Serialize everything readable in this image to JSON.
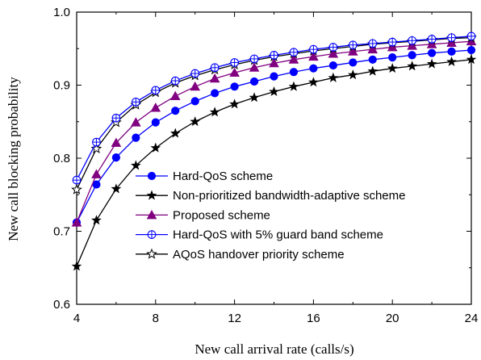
{
  "chart_data": {
    "type": "line",
    "title": "",
    "xlabel": "New call arrival rate (calls/s)",
    "ylabel": "New call blocking probability",
    "xlim": [
      4,
      24
    ],
    "ylim": [
      0.6,
      1.0
    ],
    "xticks": [
      4,
      8,
      12,
      16,
      20,
      24
    ],
    "yticks": [
      0.6,
      0.7,
      0.8,
      0.9,
      1.0
    ],
    "ytick_labels": [
      "0.6",
      "0.7",
      "0.8",
      "0.9",
      "1.0"
    ],
    "grid": false,
    "legend_position": "bottom-left",
    "x": [
      4,
      5,
      6,
      7,
      8,
      9,
      10,
      11,
      12,
      13,
      14,
      15,
      16,
      17,
      18,
      19,
      20,
      21,
      22,
      23,
      24
    ],
    "series": [
      {
        "name": "Hard-QoS scheme",
        "color": "#0000ff",
        "marker": "filled-circle",
        "values": [
          0.712,
          0.764,
          0.801,
          0.828,
          0.849,
          0.865,
          0.878,
          0.889,
          0.898,
          0.905,
          0.912,
          0.918,
          0.923,
          0.927,
          0.931,
          0.935,
          0.938,
          0.941,
          0.944,
          0.946,
          0.948
        ]
      },
      {
        "name": "Non-prioritized bandwidth-adaptive scheme",
        "color": "#000000",
        "marker": "filled-star",
        "values": [
          0.652,
          0.715,
          0.758,
          0.79,
          0.814,
          0.834,
          0.85,
          0.863,
          0.874,
          0.883,
          0.891,
          0.898,
          0.904,
          0.91,
          0.914,
          0.919,
          0.923,
          0.926,
          0.929,
          0.932,
          0.935
        ]
      },
      {
        "name": "Proposed scheme",
        "color": "#800080",
        "marker": "filled-triangle",
        "values": [
          0.712,
          0.778,
          0.821,
          0.849,
          0.869,
          0.885,
          0.898,
          0.909,
          0.917,
          0.924,
          0.93,
          0.935,
          0.939,
          0.943,
          0.946,
          0.949,
          0.952,
          0.954,
          0.956,
          0.958,
          0.96
        ]
      },
      {
        "name": "Hard-QoS with 5% guard band scheme",
        "color": "#0000ff",
        "marker": "circle-plus",
        "values": [
          0.77,
          0.822,
          0.855,
          0.877,
          0.893,
          0.906,
          0.916,
          0.924,
          0.931,
          0.936,
          0.941,
          0.945,
          0.949,
          0.952,
          0.955,
          0.957,
          0.959,
          0.961,
          0.963,
          0.965,
          0.967
        ]
      },
      {
        "name": "AQoS handover priority scheme",
        "color": "#000000",
        "marker": "open-star",
        "values": [
          0.757,
          0.813,
          0.849,
          0.873,
          0.89,
          0.903,
          0.913,
          0.921,
          0.928,
          0.934,
          0.939,
          0.943,
          0.947,
          0.95,
          0.953,
          0.956,
          0.958,
          0.96,
          0.962,
          0.964,
          0.965
        ]
      }
    ]
  }
}
